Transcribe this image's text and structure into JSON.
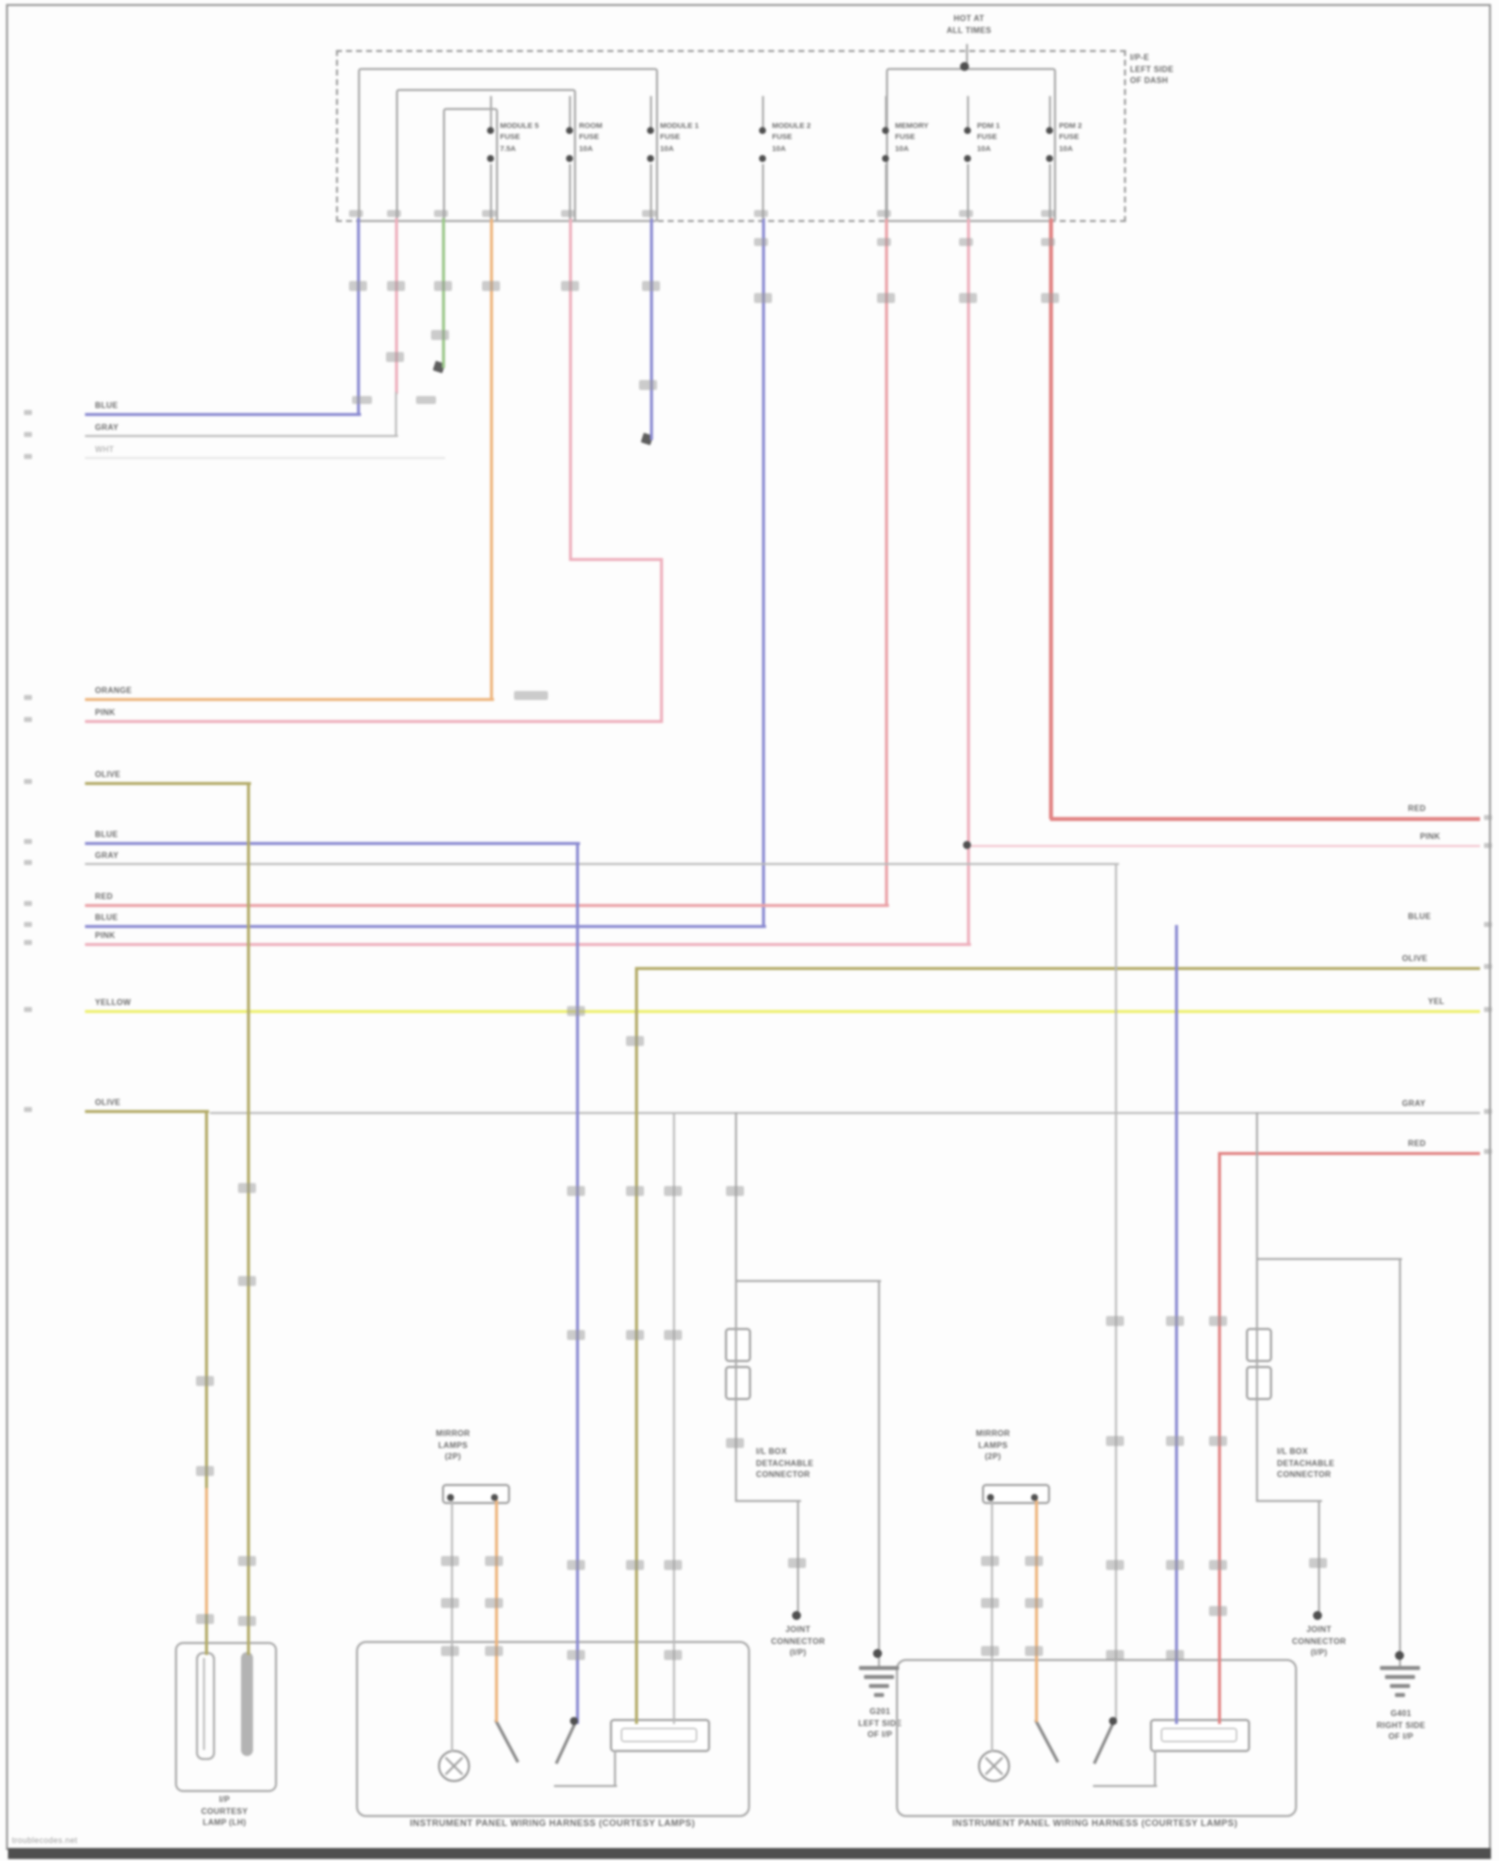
{
  "colors": {
    "blue": "#8a8ad6",
    "pink": "#f2aebc",
    "pink_light": "#f6c4ce",
    "red": "#e88282",
    "red_soft": "#efa0a6",
    "green": "#97c884",
    "orange": "#f2b478",
    "olive": "#b3ab62",
    "yellow": "#edf063",
    "gray_wire": "#bababa",
    "gray_line": "#a9a9a9",
    "faint": "#e6e6e6",
    "frame": "#979797",
    "frame_bottom": "#4f4f4f",
    "text": "#6a6a6a"
  },
  "header": {
    "hot1": "HOT AT",
    "hot2": "ALL TIMES",
    "jb": [
      "I/P-E",
      "LEFT SIDE",
      "OF DASH"
    ]
  },
  "fuses": [
    {
      "l1": "MODULE 5",
      "l2": "FUSE",
      "l3": "7.5A"
    },
    {
      "l1": "ROOM",
      "l2": "FUSE",
      "l3": "10A"
    },
    {
      "l1": "MODULE 1",
      "l2": "FUSE",
      "l3": "10A"
    },
    {
      "l1": "MODULE 2",
      "l2": "FUSE",
      "l3": "10A"
    },
    {
      "l1": "MEMORY",
      "l2": "FUSE",
      "l3": "10A"
    },
    {
      "l1": "PDM 1",
      "l2": "FUSE",
      "l3": "10A"
    },
    {
      "l1": "PDM 2",
      "l2": "FUSE",
      "l3": "10A"
    }
  ],
  "left_labels": [
    "BLUE",
    "GRAY",
    "WHT",
    "ORANGE",
    "PINK",
    "OLIVE",
    "BLUE",
    "GRAY",
    "RED",
    "BLUE",
    "PINK",
    "YELLOW",
    "OLIVE"
  ],
  "right_labels": [
    "RED",
    "PINK",
    "BLUE",
    "OLIVE",
    "YEL",
    "GRAY",
    "RED"
  ],
  "components": {
    "left_lamp": {
      "caption": [
        "I/P",
        "COURTESY",
        "LAMP (LH)"
      ]
    },
    "center": {
      "connector": [
        "MIRROR",
        "LAMPS",
        "(2P)"
      ],
      "detachable": [
        "I/L BOX",
        "DETACHABLE",
        "CONNECTOR"
      ],
      "splice": [
        "JOINT",
        "CONNECTOR",
        "(I/P)"
      ],
      "ground": [
        "G201",
        "LEFT SIDE",
        "OF I/P"
      ],
      "caption": "INSTRUMENT PANEL WIRING HARNESS (COURTESY LAMPS)"
    },
    "right": {
      "connector": [
        "MIRROR",
        "LAMPS",
        "(2P)"
      ],
      "detachable": [
        "I/L BOX",
        "DETACHABLE",
        "CONNECTOR"
      ],
      "splice": [
        "JOINT",
        "CONNECTOR",
        "(I/P)"
      ],
      "ground": [
        "G401",
        "RIGHT SIDE",
        "OF I/P"
      ],
      "caption": "INSTRUMENT PANEL WIRING HARNESS (COURTESY LAMPS)"
    }
  },
  "watermark": "troublecodes.net"
}
